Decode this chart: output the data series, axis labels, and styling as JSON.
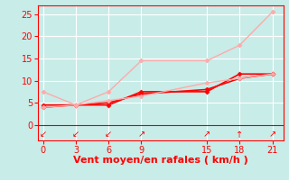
{
  "background_color": "#c8ece8",
  "grid_color": "#ffffff",
  "xlabel": "Vent moyen/en rafales ( km/h )",
  "xlabel_color": "#ff0000",
  "xlabel_fontsize": 8,
  "tick_color": "#ff0000",
  "tick_fontsize": 7,
  "xlim": [
    -0.5,
    22
  ],
  "ylim": [
    -3.5,
    27
  ],
  "xticks": [
    0,
    3,
    6,
    9,
    15,
    18,
    21
  ],
  "yticks": [
    0,
    5,
    10,
    15,
    20,
    25
  ],
  "lines": [
    {
      "x": [
        0,
        3,
        6,
        9,
        15,
        18,
        21
      ],
      "y": [
        4.5,
        4.5,
        4.5,
        7.5,
        7.5,
        11.5,
        11.5
      ],
      "color": "#ff0000",
      "linewidth": 1.2,
      "marker": "D",
      "markersize": 2.5
    },
    {
      "x": [
        0,
        3,
        6,
        9,
        15,
        18,
        21
      ],
      "y": [
        4.0,
        4.5,
        5.0,
        7.0,
        8.0,
        10.5,
        11.5
      ],
      "color": "#ff0000",
      "linewidth": 1.2,
      "marker": "D",
      "markersize": 2.5
    },
    {
      "x": [
        0,
        3,
        6,
        9,
        15,
        18,
        21
      ],
      "y": [
        7.5,
        4.5,
        7.5,
        14.5,
        14.5,
        18.0,
        25.5
      ],
      "color": "#ffaaaa",
      "linewidth": 1.0,
      "marker": "D",
      "markersize": 2.5
    },
    {
      "x": [
        0,
        3,
        6,
        9,
        15,
        18,
        21
      ],
      "y": [
        4.0,
        4.5,
        5.5,
        6.5,
        9.5,
        10.5,
        11.5
      ],
      "color": "#ffaaaa",
      "linewidth": 1.0,
      "marker": "D",
      "markersize": 2.5
    }
  ],
  "wind_arrows": [
    {
      "x": 0,
      "symbol": "↙",
      "rotation": 0
    },
    {
      "x": 3,
      "symbol": "↙",
      "rotation": 0
    },
    {
      "x": 6,
      "symbol": "↙",
      "rotation": 0
    },
    {
      "x": 9,
      "symbol": "↗",
      "rotation": 0
    },
    {
      "x": 15,
      "symbol": "↗",
      "rotation": 0
    },
    {
      "x": 18,
      "symbol": "↑",
      "rotation": 0
    },
    {
      "x": 21,
      "symbol": "↗",
      "rotation": 0
    }
  ]
}
